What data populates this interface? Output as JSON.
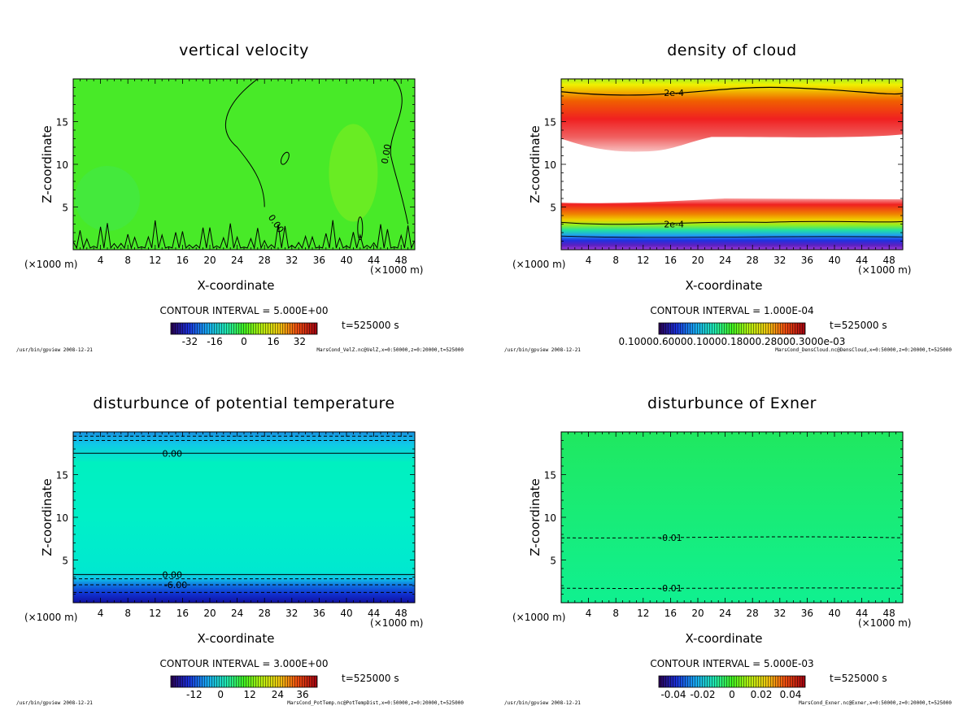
{
  "chart_data": [
    {
      "type": "heatmap",
      "title": "vertical velocity",
      "xlabel": "X-coordinate",
      "ylabel": "Z-coordinate",
      "x_unit": "(×1000 m)",
      "xlim": [
        0,
        50
      ],
      "ylim": [
        0,
        20
      ],
      "xticks": [
        4,
        8,
        12,
        16,
        20,
        24,
        28,
        32,
        36,
        40,
        44,
        48
      ],
      "yticks": [
        5,
        10,
        15
      ],
      "contour_interval": "CONTOUR INTERVAL = 5.000E+00",
      "time_label": "t=525000 s",
      "colorbar_ticks": [
        "-32",
        "-16",
        "0",
        "16",
        "32"
      ],
      "contour_labels": [
        "0.00",
        "0.00"
      ],
      "footer_left": "/usr/bin/gpview  2008-12-21",
      "footer_right": "MarsCond_VelZ.nc@VelZ,x=0:50000,z=0:20000,t=525000"
    },
    {
      "type": "heatmap",
      "title": "density of cloud",
      "xlabel": "X-coordinate",
      "ylabel": "Z-coordinate",
      "x_unit": "(×1000 m)",
      "xlim": [
        0,
        50
      ],
      "ylim": [
        0,
        20
      ],
      "xticks": [
        4,
        8,
        12,
        16,
        20,
        24,
        28,
        32,
        36,
        40,
        44,
        48
      ],
      "yticks": [
        5,
        10,
        15
      ],
      "contour_interval": "CONTOUR INTERVAL = 1.000E-04",
      "time_label": "t=525000 s",
      "colorbar_ticks": [
        "0.10000.60000.10000.18000.28000.3000e-03"
      ],
      "contour_labels": [
        "2e-4",
        "2e-4"
      ],
      "footer_left": "/usr/bin/gpview  2008-12-21",
      "footer_right": "MarsCond_DensCloud.nc@DensCloud,x=0:50000,z=0:20000,t=525000"
    },
    {
      "type": "heatmap",
      "title": "disturbunce of potential temperature",
      "xlabel": "X-coordinate",
      "ylabel": "Z-coordinate",
      "x_unit": "(×1000 m)",
      "xlim": [
        0,
        50
      ],
      "ylim": [
        0,
        20
      ],
      "xticks": [
        4,
        8,
        12,
        16,
        20,
        24,
        28,
        32,
        36,
        40,
        44,
        48
      ],
      "yticks": [
        5,
        10,
        15
      ],
      "contour_interval": "CONTOUR INTERVAL = 3.000E+00",
      "time_label": "t=525000 s",
      "colorbar_ticks": [
        "-12",
        "0",
        "12",
        "24",
        "36"
      ],
      "contour_labels": [
        "0.00",
        "0.00",
        "-6.00"
      ],
      "footer_left": "/usr/bin/gpview  2008-12-21",
      "footer_right": "MarsCond_PotTemp.nc@PotTempDist,x=0:50000,z=0:20000,t=525000"
    },
    {
      "type": "heatmap",
      "title": "disturbunce of Exner",
      "xlabel": "X-coordinate",
      "ylabel": "Z-coordinate",
      "x_unit": "(×1000 m)",
      "xlim": [
        0,
        50
      ],
      "ylim": [
        0,
        20
      ],
      "xticks": [
        4,
        8,
        12,
        16,
        20,
        24,
        28,
        32,
        36,
        40,
        44,
        48
      ],
      "yticks": [
        5,
        10,
        15
      ],
      "contour_interval": "CONTOUR INTERVAL = 5.000E-03",
      "time_label": "t=525000 s",
      "colorbar_ticks": [
        "-0.04",
        "-0.02",
        "0",
        "0.02",
        "0.04"
      ],
      "contour_labels": [
        "-0.01",
        "-0.01"
      ],
      "footer_left": "/usr/bin/gpview  2008-12-21",
      "footer_right": "MarsCond_Exner.nc@Exner,x=0:50000,z=0:20000,t=525000"
    }
  ]
}
